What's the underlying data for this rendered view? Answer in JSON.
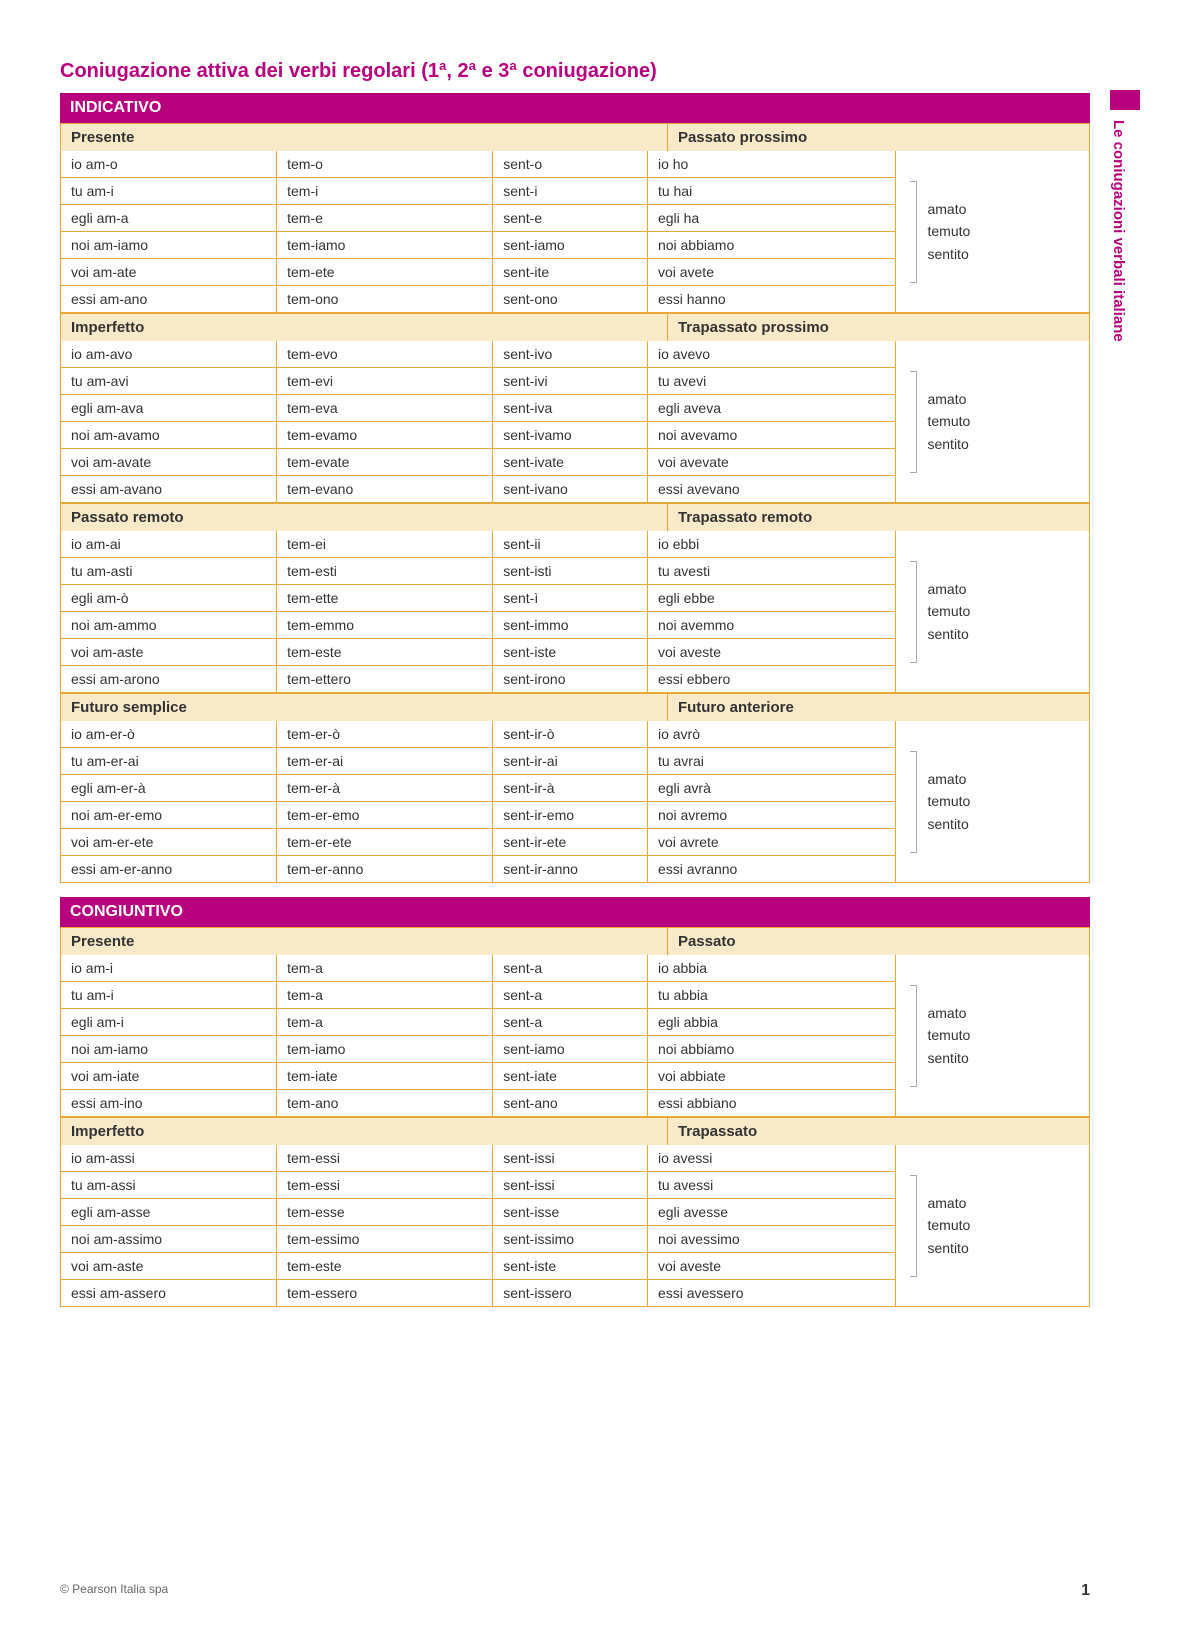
{
  "title": "Coniugazione attiva dei verbi regolari (1ª, 2ª e 3ª coniugazione)",
  "sideTab": "Le coniugazioni verbali italiane",
  "copyright": "© Pearson Italia spa",
  "pageNumber": "1",
  "participles": [
    "amato",
    "temuto",
    "sentito"
  ],
  "moods": [
    {
      "name": "INDICATIVO",
      "tenses": [
        {
          "leftLabel": "Presente",
          "rightLabel": "Passato prossimo",
          "left": [
            [
              "io am-o",
              "tem-o",
              "sent-o"
            ],
            [
              "tu am-i",
              "tem-i",
              "sent-i"
            ],
            [
              "egli am-a",
              "tem-e",
              "sent-e"
            ],
            [
              "noi am-iamo",
              "tem-iamo",
              "sent-iamo"
            ],
            [
              "voi am-ate",
              "tem-ete",
              "sent-ite"
            ],
            [
              "essi am-ano",
              "tem-ono",
              "sent-ono"
            ]
          ],
          "aux": [
            "io ho",
            "tu hai",
            "egli ha",
            "noi abbiamo",
            "voi avete",
            "essi hanno"
          ]
        },
        {
          "leftLabel": "Imperfetto",
          "rightLabel": "Trapassato prossimo",
          "left": [
            [
              "io am-avo",
              "tem-evo",
              "sent-ivo"
            ],
            [
              "tu am-avi",
              "tem-evi",
              "sent-ivi"
            ],
            [
              "egli am-ava",
              "tem-eva",
              "sent-iva"
            ],
            [
              "noi am-avamo",
              "tem-evamo",
              "sent-ivamo"
            ],
            [
              "voi am-avate",
              "tem-evate",
              "sent-ivate"
            ],
            [
              "essi am-avano",
              "tem-evano",
              "sent-ivano"
            ]
          ],
          "aux": [
            "io avevo",
            "tu avevi",
            "egli aveva",
            "noi avevamo",
            "voi avevate",
            "essi avevano"
          ]
        },
        {
          "leftLabel": "Passato remoto",
          "rightLabel": "Trapassato remoto",
          "left": [
            [
              "io am-ai",
              "tem-ei",
              "sent-ii"
            ],
            [
              "tu am-asti",
              "tem-esti",
              "sent-isti"
            ],
            [
              "egli am-ò",
              "tem-ette",
              "sent-ì"
            ],
            [
              "noi am-ammo",
              "tem-emmo",
              "sent-immo"
            ],
            [
              "voi am-aste",
              "tem-este",
              "sent-iste"
            ],
            [
              "essi am-arono",
              "tem-ettero",
              "sent-irono"
            ]
          ],
          "aux": [
            "io ebbi",
            "tu avesti",
            "egli ebbe",
            "noi avemmo",
            "voi aveste",
            "essi ebbero"
          ]
        },
        {
          "leftLabel": "Futuro semplice",
          "rightLabel": "Futuro anteriore",
          "left": [
            [
              "io am-er-ò",
              "tem-er-ò",
              "sent-ir-ò"
            ],
            [
              "tu am-er-ai",
              "tem-er-ai",
              "sent-ir-ai"
            ],
            [
              "egli am-er-à",
              "tem-er-à",
              "sent-ir-à"
            ],
            [
              "noi am-er-emo",
              "tem-er-emo",
              "sent-ir-emo"
            ],
            [
              "voi am-er-ete",
              "tem-er-ete",
              "sent-ir-ete"
            ],
            [
              "essi am-er-anno",
              "tem-er-anno",
              "sent-ir-anno"
            ]
          ],
          "aux": [
            "io avrò",
            "tu avrai",
            "egli avrà",
            "noi avremo",
            "voi avrete",
            "essi avranno"
          ]
        }
      ]
    },
    {
      "name": "CONGIUNTIVO",
      "tenses": [
        {
          "leftLabel": "Presente",
          "rightLabel": "Passato",
          "left": [
            [
              "io am-i",
              "tem-a",
              "sent-a"
            ],
            [
              "tu am-i",
              "tem-a",
              "sent-a"
            ],
            [
              "egli am-i",
              "tem-a",
              "sent-a"
            ],
            [
              "noi am-iamo",
              "tem-iamo",
              "sent-iamo"
            ],
            [
              "voi am-iate",
              "tem-iate",
              "sent-iate"
            ],
            [
              "essi am-ino",
              "tem-ano",
              "sent-ano"
            ]
          ],
          "aux": [
            "io abbia",
            "tu abbia",
            "egli abbia",
            "noi abbiamo",
            "voi abbiate",
            "essi abbiano"
          ]
        },
        {
          "leftLabel": "Imperfetto",
          "rightLabel": "Trapassato",
          "left": [
            [
              "io am-assi",
              "tem-essi",
              "sent-issi"
            ],
            [
              "tu am-assi",
              "tem-essi",
              "sent-issi"
            ],
            [
              "egli am-asse",
              "tem-esse",
              "sent-isse"
            ],
            [
              "noi am-assimo",
              "tem-essimo",
              "sent-issimo"
            ],
            [
              "voi am-aste",
              "tem-este",
              "sent-iste"
            ],
            [
              "essi am-assero",
              "tem-essero",
              "sent-issero"
            ]
          ],
          "aux": [
            "io avessi",
            "tu avessi",
            "egli avesse",
            "noi avessimo",
            "voi aveste",
            "essi avessero"
          ]
        }
      ]
    }
  ]
}
